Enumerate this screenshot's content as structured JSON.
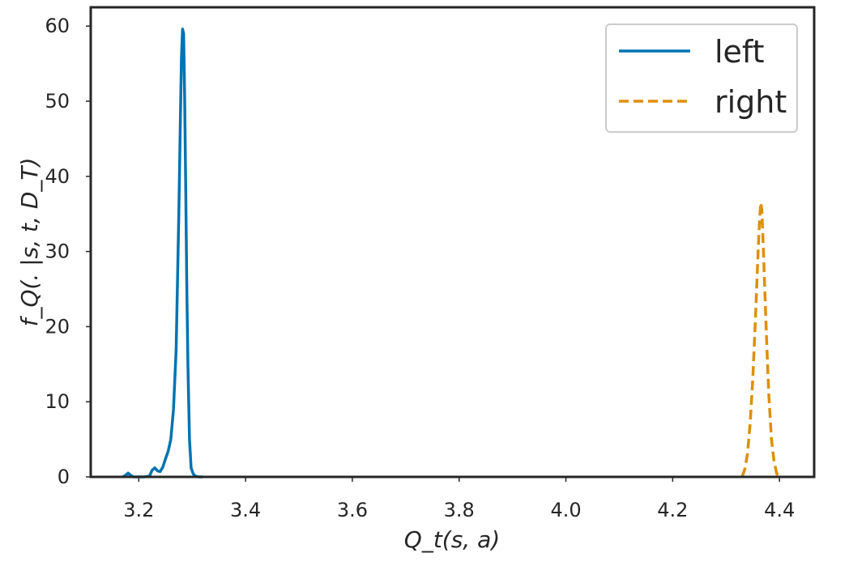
{
  "chart_data": {
    "type": "line",
    "title": "",
    "xlabel": "Q_t(s, a)",
    "ylabel": "f_Q(. |s, t, D_T)",
    "xlim": [
      3.11,
      4.465
    ],
    "ylim": [
      0,
      62.5
    ],
    "xticks": [
      3.2,
      3.4,
      3.6,
      3.8,
      4.0,
      4.2,
      4.4
    ],
    "xtick_labels": [
      "3.2",
      "3.4",
      "3.6",
      "3.8",
      "4.0",
      "4.2",
      "4.4"
    ],
    "yticks": [
      0,
      10,
      20,
      30,
      40,
      50,
      60
    ],
    "ytick_labels": [
      "0",
      "10",
      "20",
      "30",
      "40",
      "50",
      "60"
    ],
    "grid": false,
    "legend_position": "top-right",
    "series": [
      {
        "name": "left",
        "color": "#0173b2",
        "style": "solid",
        "x": [
          3.17,
          3.175,
          3.18,
          3.185,
          3.19,
          3.2,
          3.21,
          3.22,
          3.225,
          3.23,
          3.235,
          3.24,
          3.245,
          3.25,
          3.255,
          3.26,
          3.265,
          3.27,
          3.275,
          3.278,
          3.28,
          3.282,
          3.284,
          3.286,
          3.288,
          3.29,
          3.292,
          3.295,
          3.298,
          3.302,
          3.306,
          3.312,
          3.32
        ],
        "y": [
          0,
          0.2,
          0.5,
          0.2,
          0,
          0,
          0,
          0.1,
          0.9,
          1.2,
          0.8,
          0.7,
          1.3,
          2.4,
          3.4,
          5.0,
          9.0,
          17.0,
          35.0,
          48.0,
          56.0,
          59.6,
          59.0,
          50.0,
          38.0,
          25.0,
          15.0,
          5.0,
          1.2,
          0.4,
          0.1,
          0,
          0
        ]
      },
      {
        "name": "right",
        "color": "#de8f05",
        "style": "dashed",
        "x": [
          4.33,
          4.335,
          4.34,
          4.345,
          4.35,
          4.355,
          4.36,
          4.363,
          4.365,
          4.367,
          4.37,
          4.373,
          4.376,
          4.38,
          4.385,
          4.39,
          4.395,
          4.4
        ],
        "y": [
          0,
          1.0,
          3.0,
          7.0,
          13.0,
          21.0,
          30.0,
          34.5,
          36.5,
          35.5,
          30.0,
          24.0,
          18.0,
          11.0,
          5.0,
          2.0,
          0.4,
          0
        ]
      }
    ]
  }
}
